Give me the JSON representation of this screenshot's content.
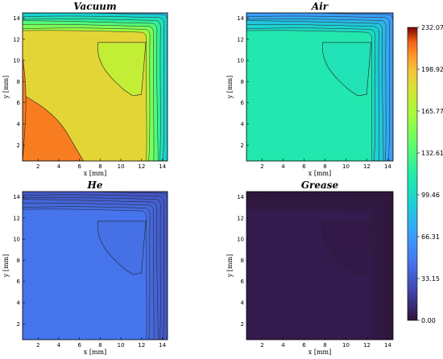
{
  "chart_data": {
    "type": "contour",
    "panels": [
      {
        "title": "Vacuum",
        "xlabel": "x [mm]",
        "ylabel": "y [mm]",
        "x_ticks": [
          2,
          4,
          6,
          8,
          10,
          12,
          14
        ],
        "y_ticks": [
          2,
          4,
          6,
          8,
          10,
          12,
          14
        ],
        "xlim": [
          0.5,
          14.5
        ],
        "ylim": [
          0.5,
          14.5
        ],
        "approx_values": {
          "core_bottom_left": 215,
          "center_region": 190,
          "upper_right_region": 175,
          "top_right_corner": 80
        }
      },
      {
        "title": "Air",
        "xlabel": "x [mm]",
        "ylabel": "y [mm]",
        "x_ticks": [
          2,
          4,
          6,
          8,
          10,
          12,
          14
        ],
        "y_ticks": [
          2,
          4,
          6,
          8,
          10,
          12,
          14
        ],
        "xlim": [
          0.5,
          14.5
        ],
        "ylim": [
          0.5,
          14.5
        ],
        "approx_values": {
          "interior": 112,
          "upper_right_region": 108,
          "top_right_corner": 60
        }
      },
      {
        "title": "He",
        "xlabel": "x [mm]",
        "ylabel": "y [mm]",
        "x_ticks": [
          2,
          4,
          6,
          8,
          10,
          12,
          14
        ],
        "y_ticks": [
          2,
          4,
          6,
          8,
          10,
          12,
          14
        ],
        "xlim": [
          0.5,
          14.5
        ],
        "ylim": [
          0.5,
          14.5
        ],
        "approx_values": {
          "interior": 46,
          "upper_right_region": 44,
          "top_right_corner": 30
        }
      },
      {
        "title": "Grease",
        "xlabel": "x [mm]",
        "ylabel": "y [mm]",
        "x_ticks": [
          2,
          4,
          6,
          8,
          10,
          12,
          14
        ],
        "y_ticks": [
          2,
          4,
          6,
          8,
          10,
          12,
          14
        ],
        "xlim": [
          0.5,
          14.5
        ],
        "ylim": [
          0.5,
          14.5
        ],
        "approx_values": {
          "interior": 4,
          "upper_right_region": 3,
          "top_right_corner": 1
        }
      }
    ],
    "colorbar": {
      "ticks": [
        "232.07",
        "198.92",
        "165.77",
        "132.61",
        "99.46",
        "66.31",
        "33.15",
        "0.00"
      ],
      "range": [
        0,
        232.07
      ],
      "colormap": "turbo"
    }
  }
}
